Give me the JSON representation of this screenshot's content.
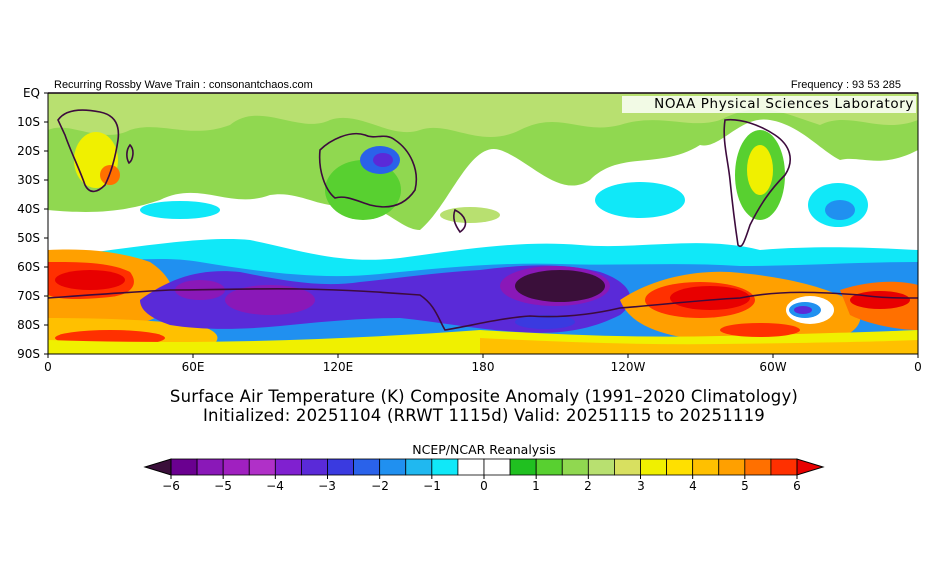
{
  "header": {
    "left_text": "Recurring Rossby Wave Train : consonantchaos.com",
    "right_text": "Frequency : 93 53 285",
    "org": "NOAA Physical Sciences Laboratory"
  },
  "map": {
    "lat_labels": [
      "EQ",
      "10S",
      "20S",
      "30S",
      "40S",
      "50S",
      "60S",
      "70S",
      "80S",
      "90S"
    ],
    "lon_labels": [
      "0",
      "60E",
      "120E",
      "180",
      "120W",
      "60W",
      "0"
    ]
  },
  "titles": {
    "line1": "Surface Air Temperature (K) Composite Anomaly (1991–2020 Climatology)",
    "line2": "Initialized: 20251104 (RRWT 1115d) Valid: 20251115 to 20251119"
  },
  "colorbar": {
    "source": "NCEP/NCAR Reanalysis",
    "tick_labels": [
      "−6",
      "−5",
      "−4",
      "−3",
      "−2",
      "−1",
      "0",
      "1",
      "2",
      "3",
      "4",
      "5",
      "6"
    ],
    "colors": [
      "#3a0f3a",
      "#6a0090",
      "#8a18b8",
      "#a020c0",
      "#b030c8",
      "#8020d0",
      "#5a2ad8",
      "#3a3ae0",
      "#2a62ea",
      "#2090f0",
      "#20b8f0",
      "#10e8f8",
      "#ffffff",
      "#ffffff",
      "#20c020",
      "#58d030",
      "#90d850",
      "#b8e070",
      "#d8e060",
      "#f0f000",
      "#ffe000",
      "#ffc000",
      "#ffa000",
      "#ff7000",
      "#ff3000",
      "#e80000"
    ]
  }
}
